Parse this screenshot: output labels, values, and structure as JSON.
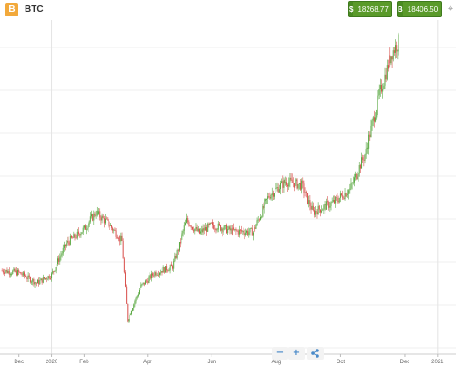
{
  "header": {
    "logo_letter": "B",
    "symbol": "BTC",
    "sell": {
      "icon": "dollar-icon",
      "glyph": "$",
      "price": "18268.77"
    },
    "buy": {
      "icon": "bitcoin-icon",
      "glyph": "B",
      "price": "18406.50"
    },
    "menu_icon": "crosshair-icon",
    "accent_color": "#5a9a2a",
    "logo_color": "#f2a93b"
  },
  "controls": {
    "zoom_out": "−",
    "zoom_in": "+",
    "share": "share-icon",
    "icon_color": "#4a8ac9"
  },
  "chart_data": {
    "type": "candlestick",
    "title": "",
    "x_tick_labels": [
      "Dec",
      "2020",
      "Feb",
      "Apr",
      "Jun",
      "Aug",
      "Oct",
      "Dec",
      "2021"
    ],
    "y_tick_labels": [],
    "grid": true,
    "up_color": "#5aa842",
    "down_color": "#d9534f",
    "trend_points": [
      [
        "2019-11-15",
        7400
      ],
      [
        "2019-12-01",
        7300
      ],
      [
        "2019-12-18",
        6800
      ],
      [
        "2020-01-01",
        7200
      ],
      [
        "2020-01-15",
        8700
      ],
      [
        "2020-02-01",
        9400
      ],
      [
        "2020-02-12",
        10200
      ],
      [
        "2020-02-25",
        9600
      ],
      [
        "2020-03-08",
        8800
      ],
      [
        "2020-03-13",
        5000
      ],
      [
        "2020-03-25",
        6600
      ],
      [
        "2020-04-08",
        7300
      ],
      [
        "2020-04-25",
        7600
      ],
      [
        "2020-05-08",
        9800
      ],
      [
        "2020-05-20",
        9200
      ],
      [
        "2020-06-01",
        9600
      ],
      [
        "2020-06-20",
        9300
      ],
      [
        "2020-07-10",
        9250
      ],
      [
        "2020-07-25",
        11000
      ],
      [
        "2020-08-10",
        11700
      ],
      [
        "2020-08-25",
        11500
      ],
      [
        "2020-09-05",
        10200
      ],
      [
        "2020-09-25",
        10700
      ],
      [
        "2020-10-10",
        11300
      ],
      [
        "2020-10-25",
        13100
      ],
      [
        "2020-11-05",
        15500
      ],
      [
        "2020-11-18",
        17800
      ],
      [
        "2020-11-25",
        18400
      ]
    ]
  }
}
